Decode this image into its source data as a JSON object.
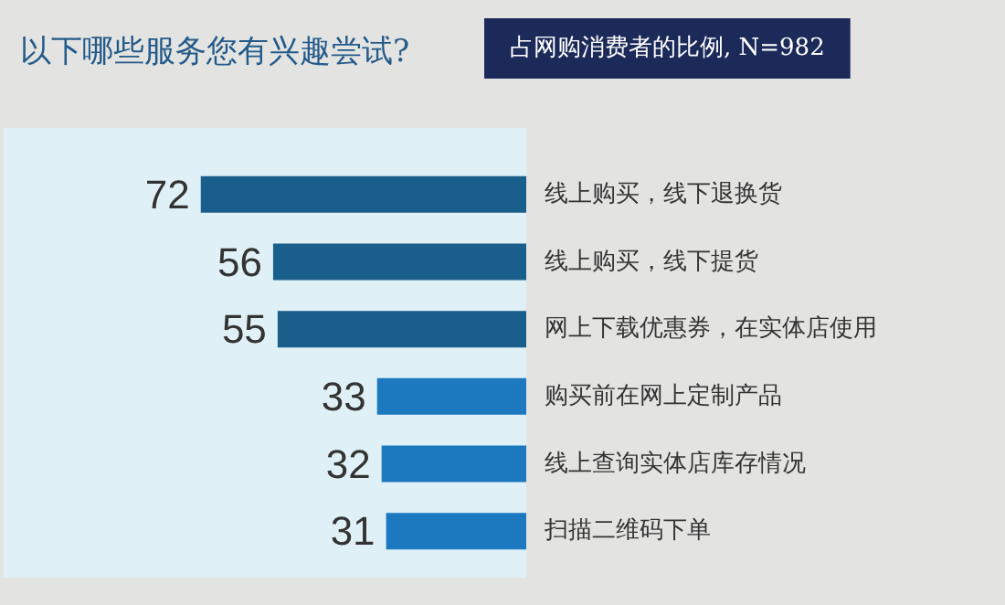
{
  "chart_data": {
    "type": "bar",
    "orientation": "horizontal",
    "title": "以下哪些服务您有兴趣尝试?",
    "subtitle": "占网购消费者的比例, N=982",
    "categories": [
      "线上购买，线下退换货",
      "线上购买，线下提货",
      "网上下载优惠券，在实体店使用",
      "购买前在网上定制产品",
      "线上查询实体店库存情况",
      "扫描二维码下单"
    ],
    "values": [
      72,
      56,
      55,
      33,
      32,
      31
    ],
    "colors": [
      "#1a5f8c",
      "#1a5f8c",
      "#1a5f8c",
      "#1c79c0",
      "#1c79c0",
      "#1c79c0"
    ],
    "data_labels": true,
    "grid": false
  }
}
